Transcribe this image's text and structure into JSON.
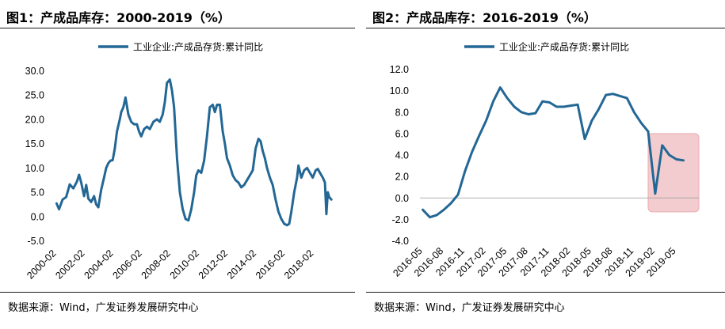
{
  "colors": {
    "series": "#236795",
    "highlight_fill": "#f1c7c9",
    "highlight_stroke": "#e8a6aa",
    "zero_line": "#999999"
  },
  "charts": [
    {
      "title": "图1：产成品库存：2000-2019（%）",
      "source": "数据来源：Wind，广发证券发展研究中心"
    },
    {
      "title": "图2：产成品库存：2016-2019（%）",
      "source": "数据来源：Wind，广发证券发展研究中心"
    }
  ],
  "chart_data": [
    {
      "type": "line",
      "title": "产成品库存：2000-2019（%）",
      "legend": "工业企业:产成品存货:累计同比",
      "ylim": [
        -5,
        30
      ],
      "yticks": [
        30,
        25,
        20,
        15,
        10,
        5,
        0,
        -5
      ],
      "ytick_labels": [
        "30.0",
        "25.0",
        "20.0",
        "15.0",
        "10.0",
        "5.0",
        "0.0",
        "-5.0"
      ],
      "xlim": [
        2000.0,
        2019.4
      ],
      "xticks": [
        2000.083,
        2002.083,
        2004.083,
        2006.083,
        2008.083,
        2010.083,
        2012.083,
        2014.083,
        2016.083,
        2018.083
      ],
      "xtick_labels": [
        "2000-02",
        "2002-02",
        "2004-02",
        "2006-02",
        "2008-02",
        "2010-02",
        "2012-02",
        "2014-02",
        "2016-02",
        "2018-02"
      ],
      "series": [
        {
          "name": "工业企业:产成品存货:累计同比",
          "x": [
            2000.08,
            2000.25,
            2000.5,
            2000.75,
            2001.0,
            2001.25,
            2001.5,
            2001.65,
            2001.8,
            2002.0,
            2002.15,
            2002.3,
            2002.5,
            2002.7,
            2002.85,
            2003.0,
            2003.2,
            2003.4,
            2003.55,
            2003.7,
            2003.85,
            2004.0,
            2004.15,
            2004.3,
            2004.5,
            2004.6,
            2004.75,
            2004.9,
            2005.1,
            2005.3,
            2005.5,
            2005.7,
            2005.85,
            2006.0,
            2006.2,
            2006.4,
            2006.6,
            2006.85,
            2007.1,
            2007.3,
            2007.5,
            2007.65,
            2007.8,
            2008.0,
            2008.15,
            2008.3,
            2008.5,
            2008.7,
            2008.9,
            2009.1,
            2009.3,
            2009.5,
            2009.7,
            2009.85,
            2010.0,
            2010.2,
            2010.4,
            2010.6,
            2010.8,
            2011.0,
            2011.15,
            2011.3,
            2011.5,
            2011.7,
            2011.85,
            2012.0,
            2012.2,
            2012.4,
            2012.6,
            2012.8,
            2013.0,
            2013.2,
            2013.4,
            2013.6,
            2013.8,
            2014.0,
            2014.2,
            2014.35,
            2014.5,
            2014.65,
            2014.8,
            2015.0,
            2015.2,
            2015.4,
            2015.6,
            2015.8,
            2016.0,
            2016.2,
            2016.35,
            2016.5,
            2016.7,
            2016.9,
            2017.0,
            2017.2,
            2017.4,
            2017.6,
            2017.8,
            2018.0,
            2018.2,
            2018.35,
            2018.5,
            2018.7,
            2018.85,
            2018.95,
            2019.05,
            2019.15,
            2019.3
          ],
          "y": [
            2.7,
            1.5,
            3.5,
            4.0,
            6.6,
            5.8,
            7.2,
            8.6,
            7.0,
            4.2,
            6.5,
            3.7,
            3.0,
            4.2,
            2.5,
            1.9,
            5.5,
            8.0,
            10.0,
            11.0,
            11.5,
            11.6,
            14.0,
            17.5,
            20.0,
            21.5,
            22.5,
            24.5,
            21.0,
            19.5,
            19.0,
            19.0,
            17.5,
            16.5,
            18.0,
            18.5,
            18.0,
            19.5,
            20.0,
            19.5,
            21.0,
            23.5,
            27.5,
            28.2,
            26.0,
            22.5,
            12.0,
            5.0,
            1.5,
            -0.5,
            -0.8,
            1.5,
            5.0,
            8.5,
            9.5,
            9.0,
            11.5,
            16.5,
            22.5,
            23.0,
            21.5,
            23.0,
            23.0,
            17.5,
            15.0,
            12.0,
            10.5,
            8.5,
            7.5,
            7.0,
            6.0,
            6.5,
            7.5,
            8.5,
            9.5,
            14.0,
            16.0,
            15.5,
            13.5,
            12.0,
            10.0,
            8.0,
            6.5,
            3.5,
            1.0,
            -0.5,
            -1.5,
            -1.8,
            -1.5,
            1.0,
            5.0,
            8.0,
            10.5,
            8.0,
            9.5,
            10.0,
            9.0,
            8.0,
            9.5,
            9.8,
            9.0,
            8.0,
            7.0,
            0.5,
            5.0,
            4.0,
            3.5
          ]
        }
      ]
    },
    {
      "type": "line",
      "title": "产成品库存：2016-2019（%）",
      "legend": "工业企业:产成品存货:累计同比",
      "ylim": [
        -4,
        12
      ],
      "yticks": [
        12,
        10,
        8,
        6,
        4,
        2,
        0,
        -2,
        -4
      ],
      "ytick_labels": [
        "12.0",
        "10.0",
        "8.0",
        "6.0",
        "4.0",
        "2.0",
        "0.0",
        "-2.0",
        "-4.0"
      ],
      "xlim": [
        2016.3,
        2019.6
      ],
      "xticks": [
        2016.333,
        2016.583,
        2016.833,
        2017.083,
        2017.333,
        2017.583,
        2017.833,
        2018.083,
        2018.333,
        2018.583,
        2018.833,
        2019.083,
        2019.333
      ],
      "xtick_labels": [
        "2016-05",
        "2016-08",
        "2016-11",
        "2017-02",
        "2017-05",
        "2017-08",
        "2017-11",
        "2018-02",
        "2018-05",
        "2018-08",
        "2018-11",
        "2019-02",
        "2019-05"
      ],
      "highlight_x_range": [
        2019.0,
        2019.6
      ],
      "highlight_y_range": [
        -1.3,
        6.0
      ],
      "series": [
        {
          "name": "工业企业:产成品存货:累计同比",
          "x": [
            2016.333,
            2016.417,
            2016.5,
            2016.583,
            2016.667,
            2016.75,
            2016.833,
            2016.917,
            2017.0,
            2017.083,
            2017.167,
            2017.25,
            2017.333,
            2017.417,
            2017.5,
            2017.583,
            2017.667,
            2017.75,
            2017.833,
            2017.917,
            2018.0,
            2018.083,
            2018.167,
            2018.25,
            2018.333,
            2018.417,
            2018.5,
            2018.583,
            2018.667,
            2018.75,
            2018.833,
            2018.917,
            2019.0,
            2019.083,
            2019.167,
            2019.25,
            2019.333,
            2019.417
          ],
          "y": [
            -1.1,
            -1.8,
            -1.6,
            -1.1,
            -0.5,
            0.3,
            2.5,
            4.3,
            5.8,
            7.2,
            9.0,
            10.3,
            9.3,
            8.5,
            8.0,
            7.8,
            7.9,
            9.0,
            8.9,
            8.5,
            8.5,
            8.6,
            8.7,
            5.5,
            7.2,
            8.3,
            9.6,
            9.7,
            9.5,
            9.3,
            8.0,
            7.0,
            6.2,
            0.4,
            4.9,
            4.0,
            3.6,
            3.5
          ]
        }
      ]
    }
  ]
}
